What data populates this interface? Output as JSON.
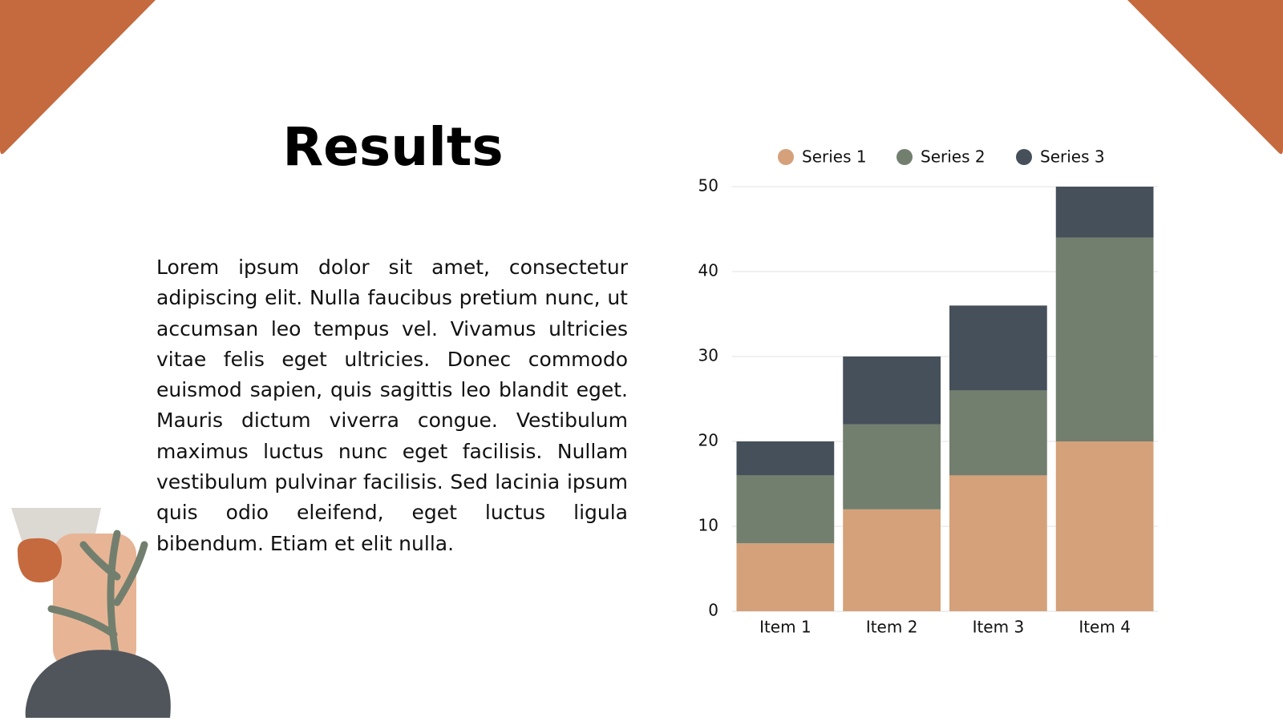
{
  "title": "Results",
  "body": "Lorem ipsum dolor sit amet, consectetur adipiscing elit. Nulla faucibus pretium nunc, ut accumsan leo tempus vel. Vivamus ultricies vitae felis eget ultricies. Donec commodo euismod sapien, quis sagittis leo blandit eget. Mauris dictum viverra congue. Vestibulum maximus luctus nunc eget facilisis. Nullam vestibulum pulvinar facilisis. Sed lacinia ipsum quis odio eleifend, eget luctus ligula bibendum. Etiam et elit nulla.",
  "chart_data": {
    "type": "stacked_bar",
    "categories": [
      "Item 1",
      "Item 2",
      "Item 3",
      "Item 4"
    ],
    "series": [
      {
        "name": "Series 1",
        "color": "#d4a17a",
        "values": [
          8,
          12,
          16,
          20
        ]
      },
      {
        "name": "Series 2",
        "color": "#737f6e",
        "values": [
          8,
          10,
          10,
          24
        ]
      },
      {
        "name": "Series 3",
        "color": "#46505a",
        "values": [
          4,
          8,
          10,
          6
        ]
      }
    ],
    "ylim": [
      0,
      50
    ],
    "yticks": [
      0,
      10,
      20,
      30,
      40,
      50
    ],
    "grid": true,
    "legend": "top"
  }
}
